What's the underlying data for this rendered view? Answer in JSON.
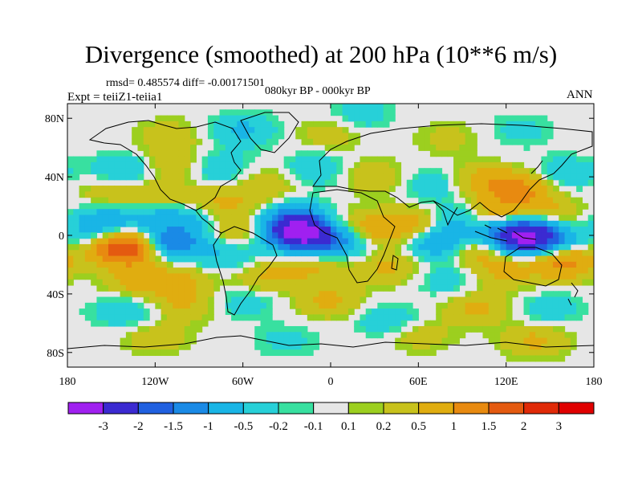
{
  "chart_data": {
    "type": "heatmap",
    "title": "Divergence (smoothed) at 200 hPa (10**6 m/s)",
    "rmsd_text": "rmsd= 0.485574 diff= -0.00171501",
    "experiment": "Expt = teiiZ1-teiia1",
    "period": "080kyr BP - 000kyr BP",
    "season": "ANN",
    "x_ticks": [
      "180",
      "120W",
      "60W",
      "0",
      "60E",
      "120E",
      "180"
    ],
    "y_ticks": [
      "80N",
      "40N",
      "0",
      "40S",
      "80S"
    ],
    "x_range": [
      -180,
      180
    ],
    "y_range": [
      -90,
      90
    ],
    "colorbar_labels": [
      "-3",
      "-2",
      "-1.5",
      "-1",
      "-0.5",
      "-0.2",
      "-0.1",
      "0.1",
      "0.2",
      "0.5",
      "1",
      "1.5",
      "2",
      "3"
    ],
    "colorbar_colors": [
      "#a020f0",
      "#3b2ad1",
      "#2060e0",
      "#1a8ae6",
      "#19b5e6",
      "#27d0d8",
      "#38e0a0",
      "#e6e6e6",
      "#9ccf1f",
      "#c8c21c",
      "#e0ad10",
      "#e88a10",
      "#e45a10",
      "#e02a08",
      "#e00000"
    ],
    "features": [
      {
        "lon": -110,
        "lat": -5,
        "value": -1.6
      },
      {
        "lon": -150,
        "lat": -8,
        "value": 1.3
      },
      {
        "lon": -135,
        "lat": -8,
        "value": 1.4
      },
      {
        "lon": -160,
        "lat": -2,
        "value": -0.8
      },
      {
        "lon": -155,
        "lat": 12,
        "value": -0.7
      },
      {
        "lon": -120,
        "lat": 15,
        "value": -0.6
      },
      {
        "lon": -95,
        "lat": 12,
        "value": -0.6
      },
      {
        "lon": -115,
        "lat": 25,
        "value": 0.6
      },
      {
        "lon": -150,
        "lat": 28,
        "value": 0.5
      },
      {
        "lon": -75,
        "lat": 22,
        "value": 0.6
      },
      {
        "lon": -60,
        "lat": 5,
        "value": 0.7
      },
      {
        "lon": -30,
        "lat": 5,
        "value": -1.5
      },
      {
        "lon": -15,
        "lat": 0,
        "value": -2.6
      },
      {
        "lon": -20,
        "lat": 12,
        "value": -0.8
      },
      {
        "lon": 5,
        "lat": 8,
        "value": 0.5
      },
      {
        "lon": 10,
        "lat": -5,
        "value": -0.8
      },
      {
        "lon": 30,
        "lat": 2,
        "value": 0.7
      },
      {
        "lon": 55,
        "lat": 8,
        "value": 0.8
      },
      {
        "lon": 75,
        "lat": -5,
        "value": -1.1
      },
      {
        "lon": 90,
        "lat": 12,
        "value": -0.7
      },
      {
        "lon": 100,
        "lat": -10,
        "value": 0.8
      },
      {
        "lon": 128,
        "lat": 0,
        "value": -2.7
      },
      {
        "lon": 145,
        "lat": -2,
        "value": -1.4
      },
      {
        "lon": 112,
        "lat": 15,
        "value": 0.9
      },
      {
        "lon": 128,
        "lat": 32,
        "value": 1.2
      },
      {
        "lon": 150,
        "lat": 15,
        "value": 0.6
      },
      {
        "lon": 160,
        "lat": -18,
        "value": 1.2
      },
      {
        "lon": 120,
        "lat": -25,
        "value": 0.6
      },
      {
        "lon": -130,
        "lat": -30,
        "value": 0.8
      },
      {
        "lon": -100,
        "lat": -32,
        "value": 0.5
      },
      {
        "lon": -70,
        "lat": -15,
        "value": -0.5
      },
      {
        "lon": -45,
        "lat": -28,
        "value": 0.6
      },
      {
        "lon": -10,
        "lat": -22,
        "value": 0.5
      },
      {
        "lon": 40,
        "lat": -22,
        "value": 0.6
      },
      {
        "lon": 80,
        "lat": -30,
        "value": -0.4
      },
      {
        "lon": -140,
        "lat": -52,
        "value": -0.5
      },
      {
        "lon": -100,
        "lat": -48,
        "value": 0.5
      },
      {
        "lon": -60,
        "lat": -45,
        "value": -0.4
      },
      {
        "lon": 0,
        "lat": -45,
        "value": 0.6
      },
      {
        "lon": 40,
        "lat": -58,
        "value": -0.5
      },
      {
        "lon": 100,
        "lat": -50,
        "value": 0.6
      },
      {
        "lon": 150,
        "lat": -50,
        "value": -0.4
      },
      {
        "lon": -140,
        "lat": 45,
        "value": -0.6
      },
      {
        "lon": -110,
        "lat": 48,
        "value": 0.5
      },
      {
        "lon": -75,
        "lat": 45,
        "value": -0.5
      },
      {
        "lon": -45,
        "lat": 35,
        "value": 0.5
      },
      {
        "lon": -10,
        "lat": 45,
        "value": -0.5
      },
      {
        "lon": 30,
        "lat": 40,
        "value": 0.5
      },
      {
        "lon": 70,
        "lat": 35,
        "value": -0.5
      },
      {
        "lon": 100,
        "lat": 38,
        "value": 0.6
      },
      {
        "lon": 160,
        "lat": 42,
        "value": -0.5
      },
      {
        "lon": -110,
        "lat": 68,
        "value": 0.4
      },
      {
        "lon": -60,
        "lat": 72,
        "value": -0.6
      },
      {
        "lon": 0,
        "lat": 70,
        "value": 0.4
      },
      {
        "lon": 20,
        "lat": 82,
        "value": -0.4
      },
      {
        "lon": 80,
        "lat": 66,
        "value": 0.3
      },
      {
        "lon": 130,
        "lat": 72,
        "value": -0.3
      },
      {
        "lon": -120,
        "lat": -70,
        "value": 0.4
      },
      {
        "lon": -30,
        "lat": -72,
        "value": -0.3
      },
      {
        "lon": 140,
        "lat": -72,
        "value": 0.6
      },
      {
        "lon": 60,
        "lat": -68,
        "value": 0.4
      }
    ]
  }
}
